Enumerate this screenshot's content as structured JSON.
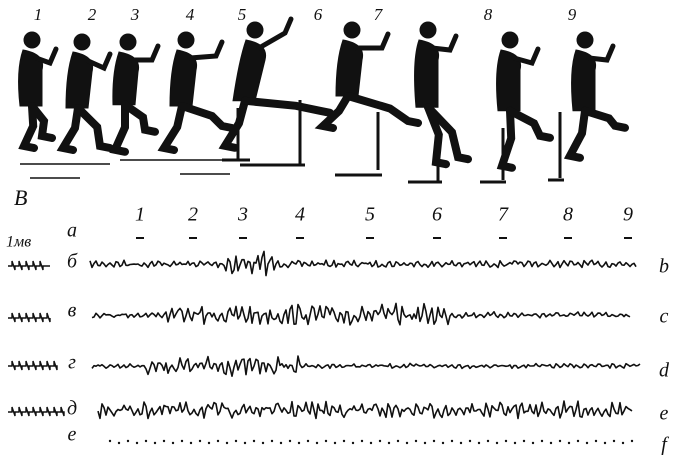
{
  "figure_numbers": [
    "1",
    "2",
    "3",
    "4",
    "5",
    "6",
    "7",
    "8",
    "9"
  ],
  "panel_label": "В",
  "scale_label": "1мв",
  "trace_numbers": [
    "1",
    "2",
    "3",
    "4",
    "5",
    "6",
    "7",
    "8",
    "9"
  ],
  "row_labels": [
    "а",
    "б",
    "в",
    "г",
    "д",
    "е"
  ],
  "right_labels": [
    "b",
    "c",
    "d",
    "e",
    "f"
  ]
}
